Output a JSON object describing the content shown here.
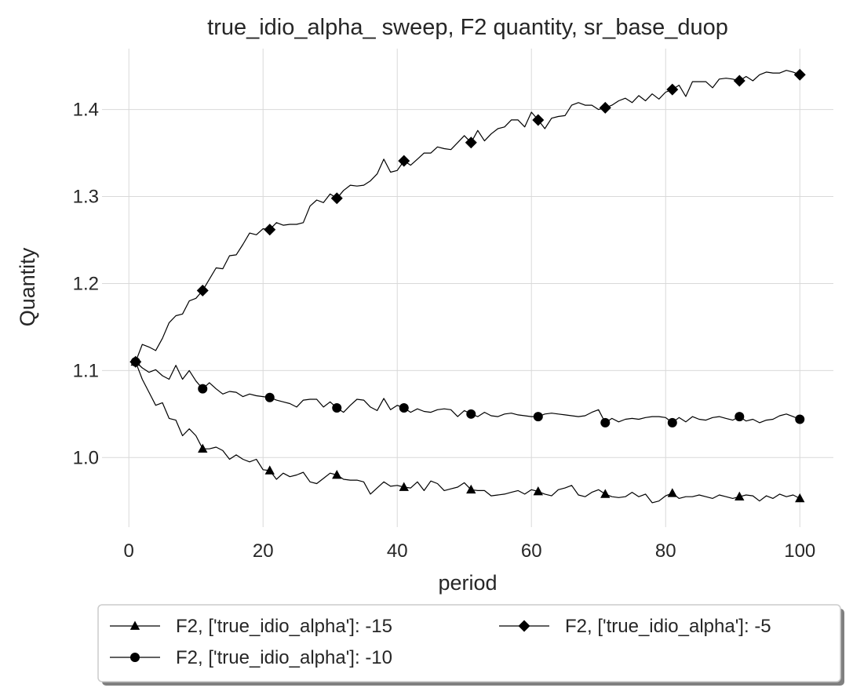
{
  "chart_data": {
    "type": "line",
    "title": "true_idio_alpha_ sweep, F2 quantity, sr_base_duop",
    "xlabel": "period",
    "ylabel": "Quantity",
    "xlim": [
      -4,
      105
    ],
    "ylim": [
      0.92,
      1.47
    ],
    "xticks": [
      0,
      20,
      40,
      60,
      80,
      100
    ],
    "yticks": [
      1.0,
      1.1,
      1.2,
      1.3,
      1.4
    ],
    "ytick_labels": [
      "1.0",
      "1.1",
      "1.2",
      "1.3",
      "1.4"
    ],
    "grid": true,
    "legend_position": "bottom",
    "line_color": "#000000",
    "marker_every": [
      1,
      11,
      21,
      31,
      41,
      51,
      61,
      71,
      81,
      91,
      100
    ],
    "series": [
      {
        "name": "F2, ['true_idio_alpha']: -15",
        "marker": "triangle",
        "x": [
          1,
          2,
          3,
          4,
          5,
          6,
          7,
          8,
          9,
          10,
          11,
          12,
          13,
          14,
          15,
          16,
          17,
          18,
          19,
          20,
          21,
          22,
          23,
          24,
          25,
          26,
          27,
          28,
          29,
          30,
          31,
          32,
          33,
          34,
          35,
          36,
          37,
          38,
          39,
          40,
          41,
          42,
          43,
          44,
          45,
          46,
          47,
          48,
          49,
          50,
          51,
          52,
          53,
          54,
          55,
          56,
          57,
          58,
          59,
          60,
          61,
          62,
          63,
          64,
          65,
          66,
          67,
          68,
          69,
          70,
          71,
          72,
          73,
          74,
          75,
          76,
          77,
          78,
          79,
          80,
          81,
          82,
          83,
          84,
          85,
          86,
          87,
          88,
          89,
          90,
          91,
          92,
          93,
          94,
          95,
          96,
          97,
          98,
          99,
          100
        ],
        "y": [
          1.11,
          1.09,
          1.075,
          1.06,
          1.063,
          1.045,
          1.043,
          1.025,
          1.033,
          1.025,
          1.01,
          1.01,
          1.012,
          1.008,
          0.998,
          1.003,
          0.998,
          0.995,
          0.998,
          0.986,
          0.985,
          0.975,
          0.982,
          0.978,
          0.98,
          0.983,
          0.972,
          0.97,
          0.976,
          0.982,
          0.98,
          0.975,
          0.974,
          0.974,
          0.972,
          0.958,
          0.965,
          0.972,
          0.967,
          0.968,
          0.966,
          0.965,
          0.972,
          0.962,
          0.973,
          0.97,
          0.962,
          0.964,
          0.966,
          0.971,
          0.963,
          0.962,
          0.962,
          0.956,
          0.957,
          0.958,
          0.96,
          0.962,
          0.958,
          0.963,
          0.961,
          0.958,
          0.956,
          0.963,
          0.965,
          0.968,
          0.957,
          0.955,
          0.96,
          0.963,
          0.958,
          0.955,
          0.954,
          0.955,
          0.96,
          0.955,
          0.958,
          0.948,
          0.95,
          0.956,
          0.959,
          0.953,
          0.955,
          0.955,
          0.957,
          0.955,
          0.953,
          0.957,
          0.955,
          0.953,
          0.955,
          0.957,
          0.956,
          0.95,
          0.956,
          0.953,
          0.958,
          0.955,
          0.957,
          0.953
        ]
      },
      {
        "name": "F2, ['true_idio_alpha']: -10",
        "marker": "circle",
        "x": [
          1,
          2,
          3,
          4,
          5,
          6,
          7,
          8,
          9,
          10,
          11,
          12,
          13,
          14,
          15,
          16,
          17,
          18,
          19,
          20,
          21,
          22,
          23,
          24,
          25,
          26,
          27,
          28,
          29,
          30,
          31,
          32,
          33,
          34,
          35,
          36,
          37,
          38,
          39,
          40,
          41,
          42,
          43,
          44,
          45,
          46,
          47,
          48,
          49,
          50,
          51,
          52,
          53,
          54,
          55,
          56,
          57,
          58,
          59,
          60,
          61,
          62,
          63,
          64,
          65,
          66,
          67,
          68,
          69,
          70,
          71,
          72,
          73,
          74,
          75,
          76,
          77,
          78,
          79,
          80,
          81,
          82,
          83,
          84,
          85,
          86,
          87,
          88,
          89,
          90,
          91,
          92,
          93,
          94,
          95,
          96,
          97,
          98,
          99,
          100
        ],
        "y": [
          1.11,
          1.103,
          1.098,
          1.101,
          1.094,
          1.09,
          1.106,
          1.09,
          1.1,
          1.088,
          1.079,
          1.086,
          1.079,
          1.073,
          1.076,
          1.075,
          1.07,
          1.073,
          1.071,
          1.07,
          1.069,
          1.066,
          1.064,
          1.062,
          1.058,
          1.066,
          1.067,
          1.067,
          1.058,
          1.064,
          1.057,
          1.052,
          1.06,
          1.067,
          1.066,
          1.058,
          1.054,
          1.068,
          1.055,
          1.06,
          1.057,
          1.052,
          1.056,
          1.053,
          1.052,
          1.055,
          1.056,
          1.055,
          1.047,
          1.054,
          1.05,
          1.047,
          1.052,
          1.048,
          1.047,
          1.05,
          1.051,
          1.049,
          1.048,
          1.047,
          1.047,
          1.05,
          1.051,
          1.05,
          1.049,
          1.048,
          1.047,
          1.048,
          1.052,
          1.055,
          1.04,
          1.045,
          1.041,
          1.044,
          1.045,
          1.044,
          1.046,
          1.047,
          1.047,
          1.046,
          1.04,
          1.046,
          1.041,
          1.047,
          1.044,
          1.043,
          1.046,
          1.047,
          1.045,
          1.043,
          1.047,
          1.042,
          1.044,
          1.04,
          1.043,
          1.044,
          1.048,
          1.05,
          1.047,
          1.044
        ]
      },
      {
        "name": "F2, ['true_idio_alpha']: -5",
        "marker": "diamond",
        "x": [
          1,
          2,
          3,
          4,
          5,
          6,
          7,
          8,
          9,
          10,
          11,
          12,
          13,
          14,
          15,
          16,
          17,
          18,
          19,
          20,
          21,
          22,
          23,
          24,
          25,
          26,
          27,
          28,
          29,
          30,
          31,
          32,
          33,
          34,
          35,
          36,
          37,
          38,
          39,
          40,
          41,
          42,
          43,
          44,
          45,
          46,
          47,
          48,
          49,
          50,
          51,
          52,
          53,
          54,
          55,
          56,
          57,
          58,
          59,
          60,
          61,
          62,
          63,
          64,
          65,
          66,
          67,
          68,
          69,
          70,
          71,
          72,
          73,
          74,
          75,
          76,
          77,
          78,
          79,
          80,
          81,
          82,
          83,
          84,
          85,
          86,
          87,
          88,
          89,
          90,
          91,
          92,
          93,
          94,
          95,
          96,
          97,
          98,
          99,
          100
        ],
        "y": [
          1.11,
          1.13,
          1.127,
          1.123,
          1.137,
          1.155,
          1.163,
          1.165,
          1.18,
          1.183,
          1.192,
          1.205,
          1.218,
          1.217,
          1.232,
          1.233,
          1.245,
          1.258,
          1.256,
          1.263,
          1.262,
          1.27,
          1.267,
          1.268,
          1.268,
          1.27,
          1.289,
          1.296,
          1.293,
          1.303,
          1.298,
          1.307,
          1.313,
          1.312,
          1.313,
          1.318,
          1.326,
          1.343,
          1.328,
          1.33,
          1.341,
          1.336,
          1.343,
          1.35,
          1.35,
          1.357,
          1.355,
          1.354,
          1.362,
          1.37,
          1.362,
          1.376,
          1.364,
          1.372,
          1.378,
          1.38,
          1.388,
          1.388,
          1.38,
          1.397,
          1.388,
          1.378,
          1.39,
          1.392,
          1.393,
          1.405,
          1.408,
          1.405,
          1.405,
          1.4,
          1.402,
          1.405,
          1.41,
          1.413,
          1.408,
          1.416,
          1.41,
          1.418,
          1.412,
          1.42,
          1.423,
          1.428,
          1.415,
          1.432,
          1.432,
          1.432,
          1.425,
          1.435,
          1.436,
          1.435,
          1.433,
          1.438,
          1.433,
          1.44,
          1.443,
          1.442,
          1.442,
          1.445,
          1.443,
          1.44
        ]
      }
    ]
  }
}
